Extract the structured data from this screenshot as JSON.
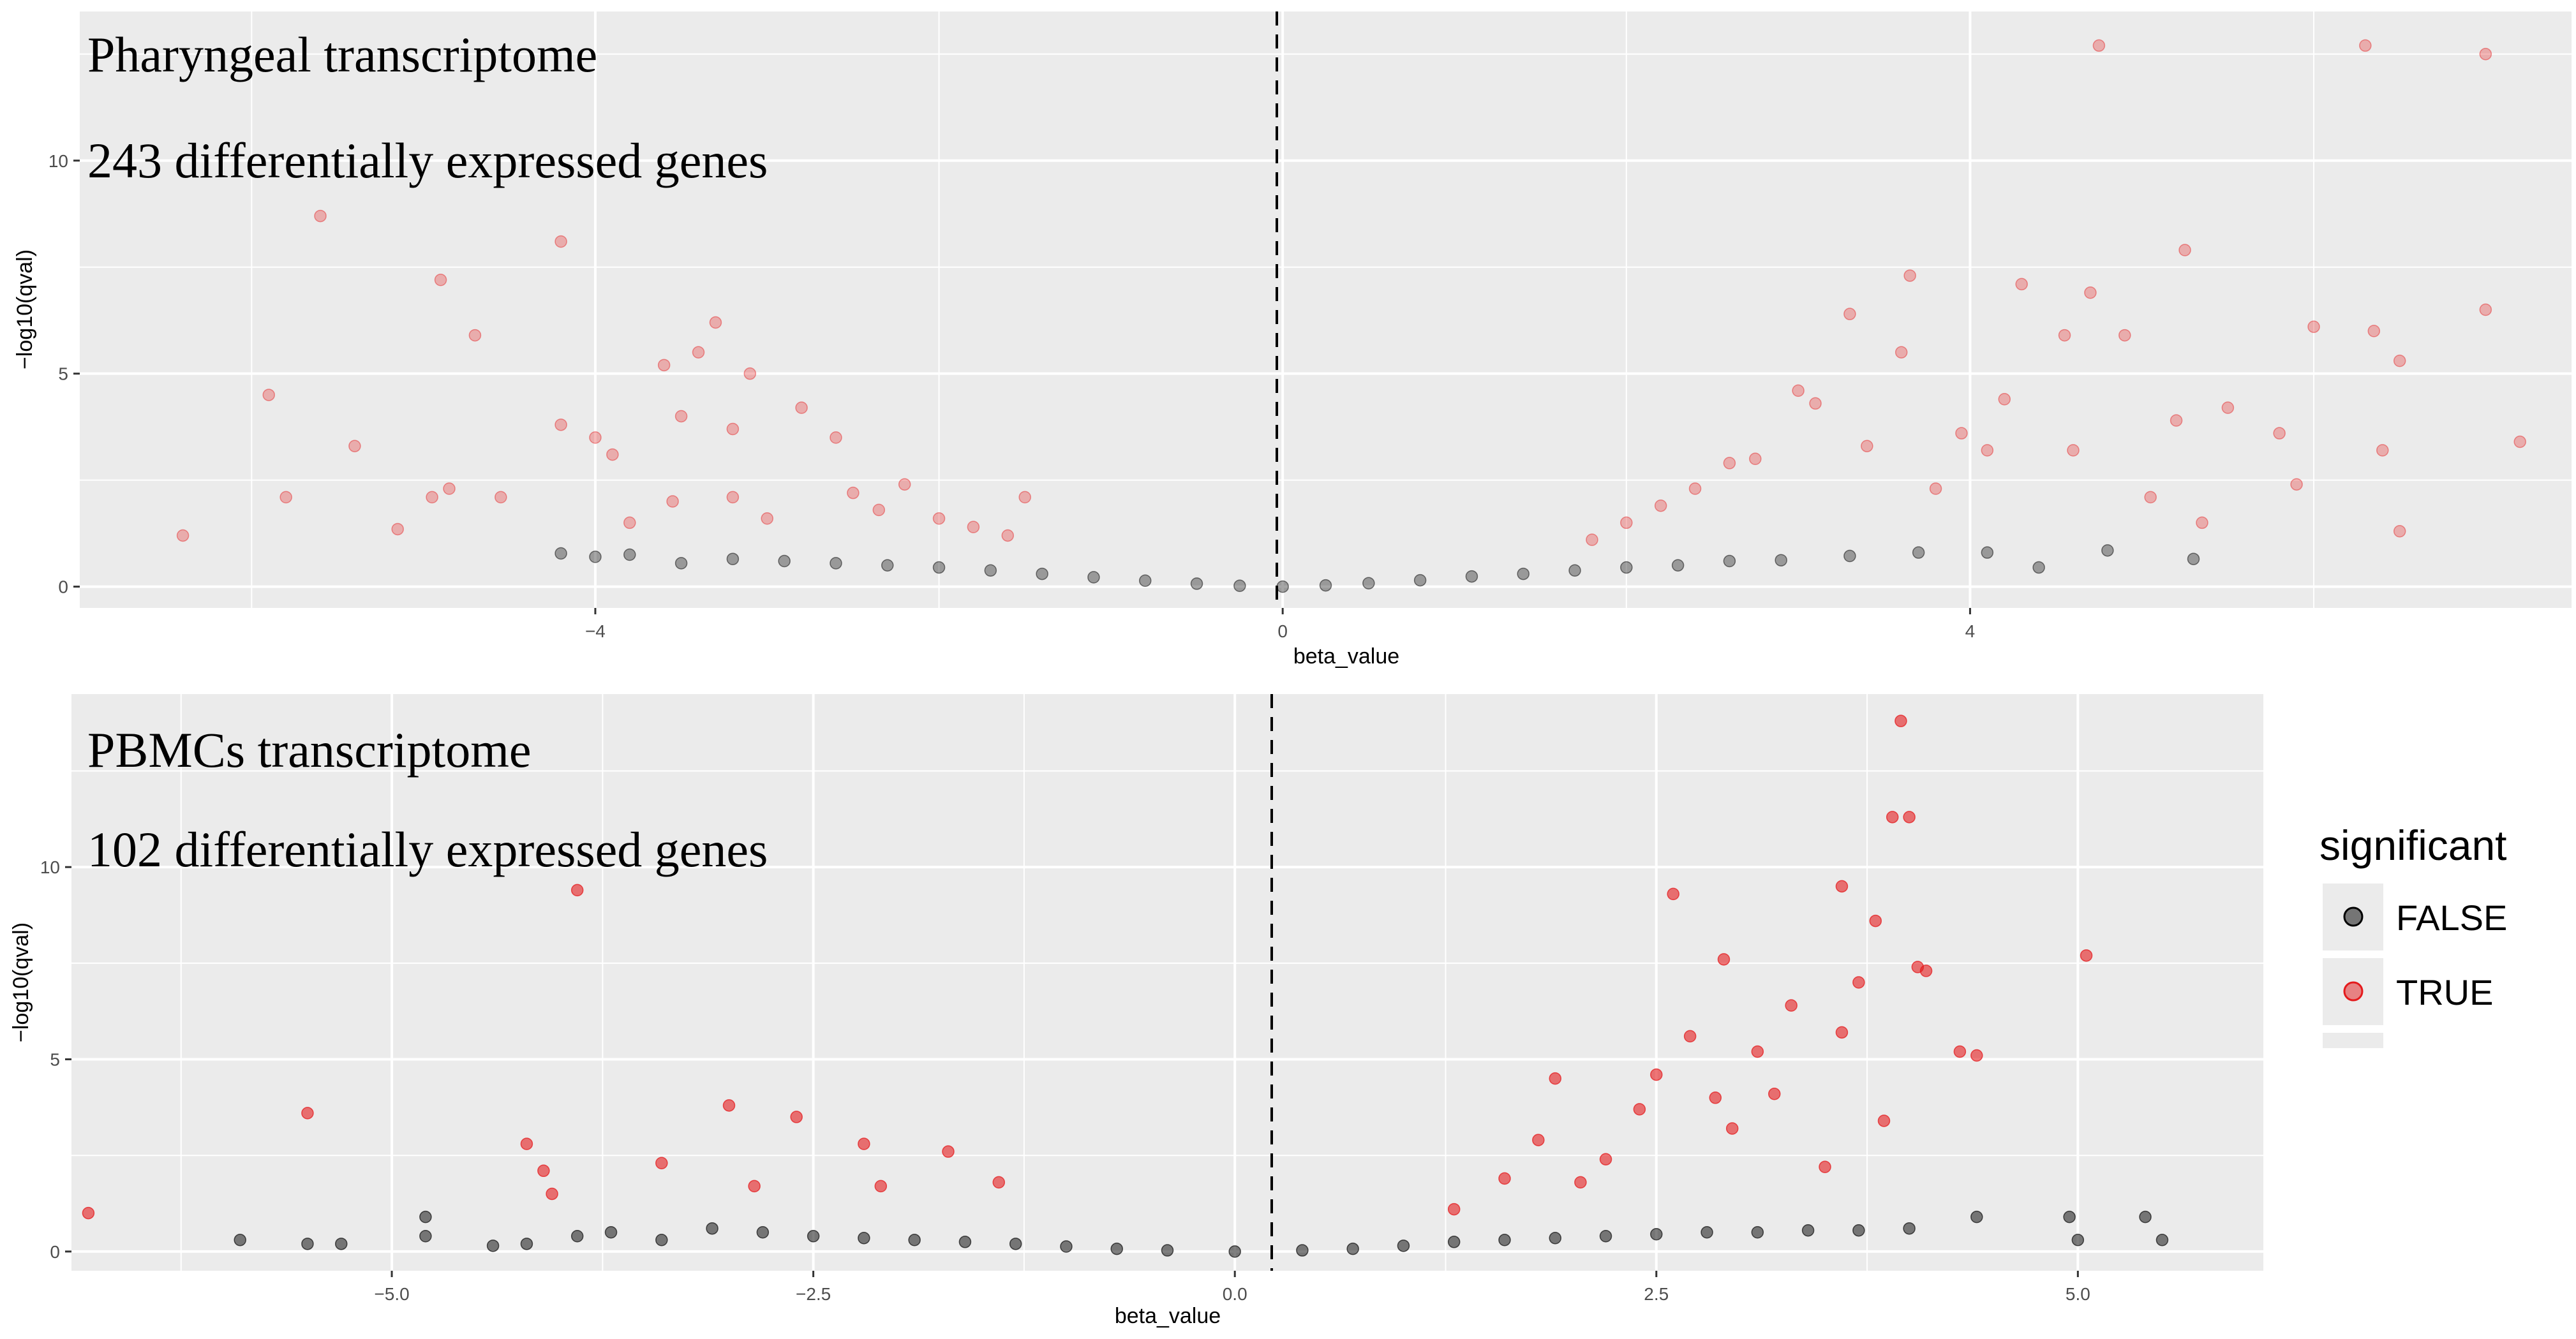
{
  "chart_data": [
    {
      "type": "scatter",
      "panel": "top",
      "title": "Pharyngeal transcriptome",
      "subtitle": "243 differentially expressed genes",
      "xlabel": "beta_value",
      "ylabel": "−log10(qval)",
      "xlim": [
        -7.0,
        7.5
      ],
      "ylim": [
        -0.5,
        13.5
      ],
      "xticks": [
        -4,
        0,
        4
      ],
      "xtick_labels": [
        "−4",
        "0",
        "4"
      ],
      "yticks": [
        0,
        5,
        10
      ],
      "ytick_labels": [
        "0",
        "5",
        "10"
      ],
      "vline": 0,
      "grid": true,
      "series": [
        {
          "name": "FALSE",
          "color": "#000000",
          "alpha": 0.35,
          "points": [
            [
              -4.2,
              0.78
            ],
            [
              -4.0,
              0.7
            ],
            [
              -3.8,
              0.75
            ],
            [
              -3.5,
              0.55
            ],
            [
              -3.2,
              0.65
            ],
            [
              -2.9,
              0.6
            ],
            [
              -2.6,
              0.55
            ],
            [
              -2.3,
              0.5
            ],
            [
              -2.0,
              0.45
            ],
            [
              -1.7,
              0.38
            ],
            [
              -1.4,
              0.3
            ],
            [
              -1.1,
              0.22
            ],
            [
              -0.8,
              0.14
            ],
            [
              -0.5,
              0.07
            ],
            [
              -0.25,
              0.02
            ],
            [
              0.0,
              0.0
            ],
            [
              0.25,
              0.03
            ],
            [
              0.5,
              0.08
            ],
            [
              0.8,
              0.15
            ],
            [
              1.1,
              0.24
            ],
            [
              1.4,
              0.3
            ],
            [
              1.7,
              0.38
            ],
            [
              2.0,
              0.45
            ],
            [
              2.3,
              0.5
            ],
            [
              2.6,
              0.6
            ],
            [
              2.9,
              0.62
            ],
            [
              3.3,
              0.72
            ],
            [
              3.7,
              0.8
            ],
            [
              4.1,
              0.8
            ],
            [
              4.4,
              0.45
            ],
            [
              4.8,
              0.85
            ],
            [
              5.3,
              0.65
            ]
          ]
        },
        {
          "name": "TRUE",
          "color": "#e41a1c",
          "alpha": 0.3,
          "points": [
            [
              -6.4,
              1.2
            ],
            [
              -5.9,
              4.5
            ],
            [
              -5.8,
              2.1
            ],
            [
              -5.6,
              8.7
            ],
            [
              -5.4,
              3.3
            ],
            [
              -5.15,
              1.35
            ],
            [
              -4.95,
              2.1
            ],
            [
              -4.9,
              7.2
            ],
            [
              -4.85,
              2.3
            ],
            [
              -4.7,
              5.9
            ],
            [
              -4.55,
              2.1
            ],
            [
              -4.2,
              8.1
            ],
            [
              -4.2,
              3.8
            ],
            [
              -4.0,
              3.5
            ],
            [
              -3.9,
              3.1
            ],
            [
              -3.8,
              1.5
            ],
            [
              -3.6,
              5.2
            ],
            [
              -3.55,
              2.0
            ],
            [
              -3.5,
              4.0
            ],
            [
              -3.4,
              5.5
            ],
            [
              -3.2,
              3.7
            ],
            [
              -3.2,
              2.1
            ],
            [
              -3.0,
              1.6
            ],
            [
              -3.3,
              6.2
            ],
            [
              -3.1,
              5.0
            ],
            [
              -2.8,
              4.2
            ],
            [
              -2.6,
              3.5
            ],
            [
              -2.5,
              2.2
            ],
            [
              -2.35,
              1.8
            ],
            [
              -2.2,
              2.4
            ],
            [
              -2.0,
              1.6
            ],
            [
              -1.8,
              1.4
            ],
            [
              -1.6,
              1.2
            ],
            [
              -1.5,
              2.1
            ],
            [
              1.8,
              1.1
            ],
            [
              2.0,
              1.5
            ],
            [
              2.2,
              1.9
            ],
            [
              2.4,
              2.3
            ],
            [
              2.6,
              2.9
            ],
            [
              2.75,
              3.0
            ],
            [
              3.0,
              4.6
            ],
            [
              3.1,
              4.3
            ],
            [
              3.3,
              6.4
            ],
            [
              3.4,
              3.3
            ],
            [
              3.6,
              5.5
            ],
            [
              3.65,
              7.3
            ],
            [
              3.8,
              2.3
            ],
            [
              3.95,
              3.6
            ],
            [
              4.1,
              3.2
            ],
            [
              4.2,
              4.4
            ],
            [
              4.3,
              7.1
            ],
            [
              4.55,
              5.9
            ],
            [
              4.6,
              3.2
            ],
            [
              4.7,
              6.9
            ],
            [
              4.75,
              12.7
            ],
            [
              4.9,
              5.9
            ],
            [
              5.05,
              2.1
            ],
            [
              5.2,
              3.9
            ],
            [
              5.25,
              7.9
            ],
            [
              5.35,
              1.5
            ],
            [
              5.5,
              4.2
            ],
            [
              5.8,
              3.6
            ],
            [
              5.9,
              2.4
            ],
            [
              6.0,
              6.1
            ],
            [
              6.3,
              12.7
            ],
            [
              6.35,
              6.0
            ],
            [
              6.4,
              3.2
            ],
            [
              6.5,
              5.3
            ],
            [
              6.5,
              1.3
            ],
            [
              7.0,
              12.5
            ],
            [
              7.0,
              6.5
            ],
            [
              7.2,
              3.4
            ]
          ]
        }
      ]
    },
    {
      "type": "scatter",
      "panel": "bottom",
      "title": "PBMCs transcriptome",
      "subtitle": "102 differentially expressed genes",
      "xlabel": "beta_value",
      "ylabel": "−log10(qval)",
      "xlim": [
        -6.9,
        6.1
      ],
      "ylim": [
        -0.5,
        14.5
      ],
      "xticks": [
        -5.0,
        -2.5,
        0.0,
        2.5,
        5.0
      ],
      "xtick_labels": [
        "−5.0",
        "−2.5",
        "0.0",
        "2.5",
        "5.0"
      ],
      "yticks": [
        0,
        5,
        10
      ],
      "ytick_labels": [
        "0",
        "5",
        "10"
      ],
      "vline": 0,
      "grid": true,
      "series": [
        {
          "name": "FALSE",
          "color": "#000000",
          "alpha": 0.5,
          "points": [
            [
              -5.9,
              0.3
            ],
            [
              -5.5,
              0.2
            ],
            [
              -5.3,
              0.2
            ],
            [
              -4.8,
              0.9
            ],
            [
              -4.8,
              0.4
            ],
            [
              -4.4,
              0.15
            ],
            [
              -4.2,
              0.2
            ],
            [
              -3.9,
              0.4
            ],
            [
              -3.7,
              0.5
            ],
            [
              -3.4,
              0.3
            ],
            [
              -3.1,
              0.6
            ],
            [
              -2.8,
              0.5
            ],
            [
              -2.5,
              0.4
            ],
            [
              -2.2,
              0.35
            ],
            [
              -1.9,
              0.3
            ],
            [
              -1.6,
              0.25
            ],
            [
              -1.3,
              0.2
            ],
            [
              -1.0,
              0.13
            ],
            [
              -0.7,
              0.07
            ],
            [
              -0.4,
              0.03
            ],
            [
              0.0,
              0.0
            ],
            [
              0.4,
              0.03
            ],
            [
              0.7,
              0.07
            ],
            [
              1.0,
              0.15
            ],
            [
              1.3,
              0.25
            ],
            [
              1.6,
              0.3
            ],
            [
              1.9,
              0.35
            ],
            [
              2.2,
              0.4
            ],
            [
              2.5,
              0.45
            ],
            [
              2.8,
              0.5
            ],
            [
              3.1,
              0.5
            ],
            [
              3.4,
              0.55
            ],
            [
              3.7,
              0.55
            ],
            [
              4.0,
              0.6
            ],
            [
              4.4,
              0.9
            ],
            [
              4.95,
              0.9
            ],
            [
              5.0,
              0.3
            ],
            [
              5.4,
              0.9
            ],
            [
              5.5,
              0.3
            ]
          ]
        },
        {
          "name": "TRUE",
          "color": "#e41a1c",
          "alpha": 0.6,
          "points": [
            [
              -6.8,
              1.0
            ],
            [
              -5.5,
              3.6
            ],
            [
              -4.2,
              2.8
            ],
            [
              -4.1,
              2.1
            ],
            [
              -4.05,
              1.5
            ],
            [
              -3.9,
              9.4
            ],
            [
              -3.4,
              2.3
            ],
            [
              -3.0,
              3.8
            ],
            [
              -2.85,
              1.7
            ],
            [
              -2.6,
              3.5
            ],
            [
              -2.2,
              2.8
            ],
            [
              -2.1,
              1.7
            ],
            [
              -1.7,
              2.6
            ],
            [
              -1.4,
              1.8
            ],
            [
              1.3,
              1.1
            ],
            [
              1.6,
              1.9
            ],
            [
              1.8,
              2.9
            ],
            [
              1.9,
              4.5
            ],
            [
              2.05,
              1.8
            ],
            [
              2.2,
              2.4
            ],
            [
              2.4,
              3.7
            ],
            [
              2.5,
              4.6
            ],
            [
              2.6,
              9.3
            ],
            [
              2.7,
              5.6
            ],
            [
              2.85,
              4.0
            ],
            [
              2.9,
              7.6
            ],
            [
              2.95,
              3.2
            ],
            [
              3.1,
              5.2
            ],
            [
              3.2,
              4.1
            ],
            [
              3.3,
              6.4
            ],
            [
              3.5,
              2.2
            ],
            [
              3.6,
              9.5
            ],
            [
              3.6,
              5.7
            ],
            [
              3.7,
              7.0
            ],
            [
              3.8,
              8.6
            ],
            [
              3.85,
              3.4
            ],
            [
              3.9,
              11.3
            ],
            [
              3.95,
              13.8
            ],
            [
              4.0,
              11.3
            ],
            [
              4.05,
              7.4
            ],
            [
              4.1,
              7.3
            ],
            [
              4.3,
              5.2
            ],
            [
              4.4,
              5.1
            ],
            [
              5.05,
              7.7
            ]
          ]
        }
      ]
    }
  ],
  "legend": {
    "title": "significant",
    "items": [
      {
        "label": "FALSE",
        "color": "#000000",
        "alpha": 0.5
      },
      {
        "label": "TRUE",
        "color": "#e41a1c",
        "alpha": 0.5
      }
    ]
  }
}
